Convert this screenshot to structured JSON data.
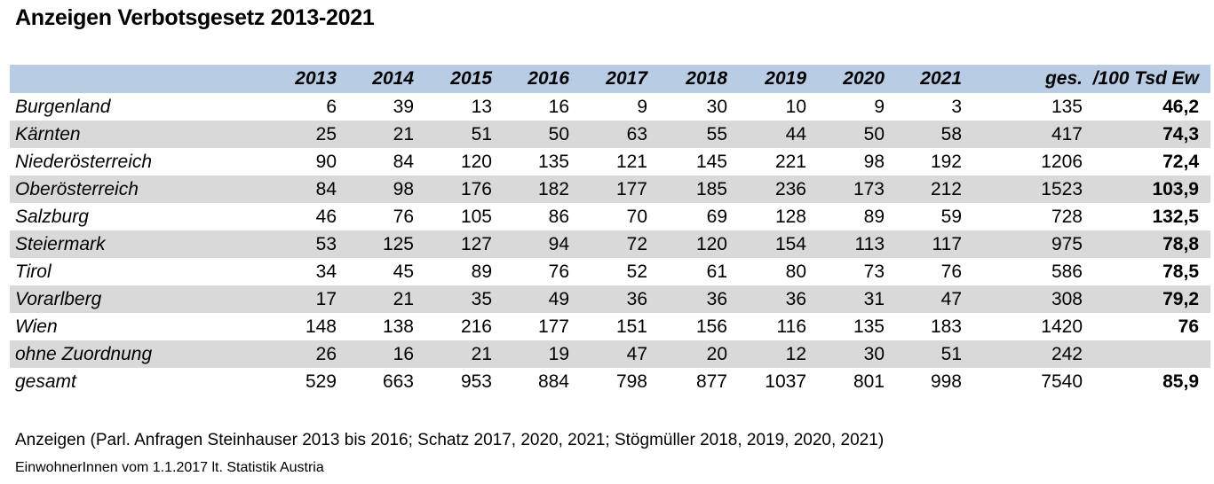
{
  "title": "Anzeigen Verbotsgesetz 2013-2021",
  "table": {
    "headers": [
      "2013",
      "2014",
      "2015",
      "2016",
      "2017",
      "2018",
      "2019",
      "2020",
      "2021",
      "ges.",
      "/100 Tsd Ew"
    ],
    "rows": [
      {
        "label": "Burgenland",
        "values": [
          "6",
          "39",
          "13",
          "16",
          "9",
          "30",
          "10",
          "9",
          "3",
          "135",
          "46,2"
        ]
      },
      {
        "label": "Kärnten",
        "values": [
          "25",
          "21",
          "51",
          "50",
          "63",
          "55",
          "44",
          "50",
          "58",
          "417",
          "74,3"
        ]
      },
      {
        "label": "Niederösterreich",
        "values": [
          "90",
          "84",
          "120",
          "135",
          "121",
          "145",
          "221",
          "98",
          "192",
          "1206",
          "72,4"
        ]
      },
      {
        "label": "Oberösterreich",
        "values": [
          "84",
          "98",
          "176",
          "182",
          "177",
          "185",
          "236",
          "173",
          "212",
          "1523",
          "103,9"
        ]
      },
      {
        "label": "Salzburg",
        "values": [
          "46",
          "76",
          "105",
          "86",
          "70",
          "69",
          "128",
          "89",
          "59",
          "728",
          "132,5"
        ]
      },
      {
        "label": "Steiermark",
        "values": [
          "53",
          "125",
          "127",
          "94",
          "72",
          "120",
          "154",
          "113",
          "117",
          "975",
          "78,8"
        ]
      },
      {
        "label": "Tirol",
        "values": [
          "34",
          "45",
          "89",
          "76",
          "52",
          "61",
          "80",
          "73",
          "76",
          "586",
          "78,5"
        ]
      },
      {
        "label": "Vorarlberg",
        "values": [
          "17",
          "21",
          "35",
          "49",
          "36",
          "36",
          "36",
          "31",
          "47",
          "308",
          "79,2"
        ]
      },
      {
        "label": "Wien",
        "values": [
          "148",
          "138",
          "216",
          "177",
          "151",
          "156",
          "116",
          "135",
          "183",
          "1420",
          "76"
        ]
      },
      {
        "label": "ohne Zuordnung",
        "values": [
          "26",
          "16",
          "21",
          "19",
          "47",
          "20",
          "12",
          "30",
          "51",
          "242",
          ""
        ]
      },
      {
        "label": "gesamt",
        "values": [
          "529",
          "663",
          "953",
          "884",
          "798",
          "877",
          "1037",
          "801",
          "998",
          "7540",
          "85,9"
        ]
      }
    ]
  },
  "footnotes": {
    "source": "Anzeigen (Parl. Anfragen Steinhauser 2013 bis 2016; Schatz 2017, 2020, 2021; Stögmüller 2018, 2019, 2020, 2021)",
    "population": "EinwohnerInnen vom 1.1.2017 lt. Statistik Austria"
  },
  "colors": {
    "header_background": "#b8cce4",
    "shaded_row": "#d9d9d9"
  }
}
